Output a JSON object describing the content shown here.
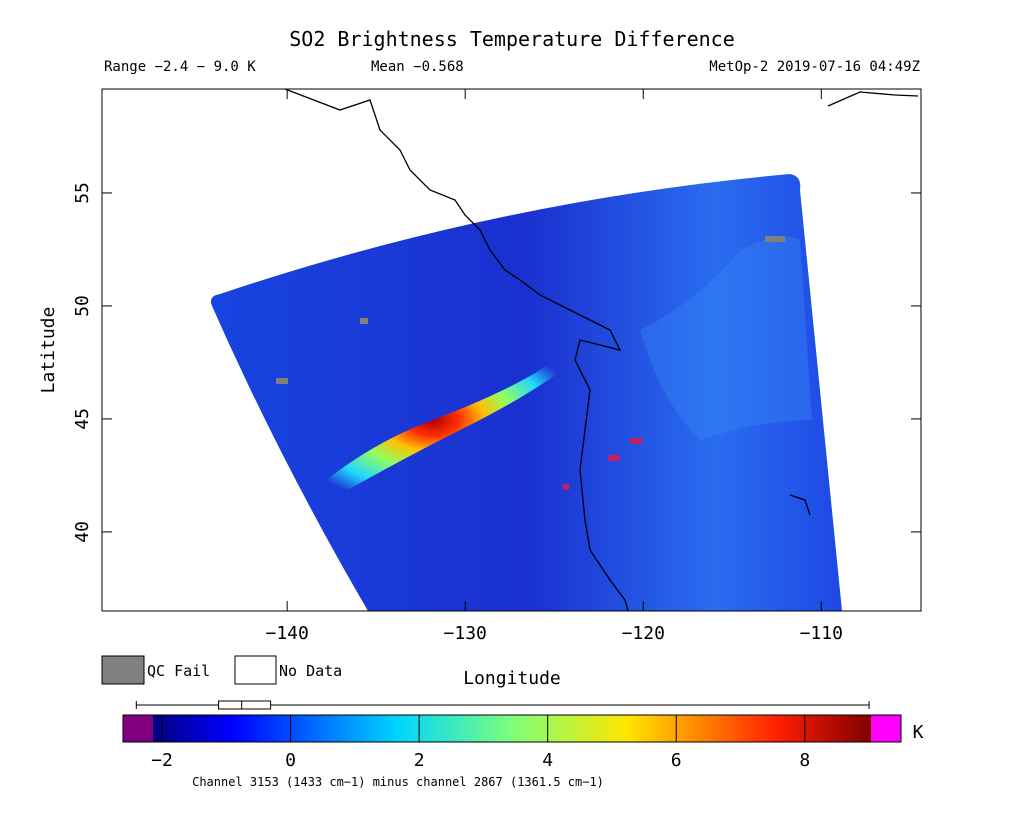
{
  "chart_data": {
    "type": "map",
    "title": "SO2 Brightness Temperature Difference",
    "range_text": "Range −2.4 − 9.0 K",
    "mean_text": "Mean −0.568",
    "source_text": "MetOp-2 2019-07-16 04:49Z",
    "xlabel": "Longitude",
    "ylabel": "Latitude",
    "xlim": [
      -150.4,
      -104.4
    ],
    "ylim": [
      36.5,
      59.6
    ],
    "xticks": [
      {
        "value": -140,
        "label": "−140"
      },
      {
        "value": -130,
        "label": "−130"
      },
      {
        "value": -120,
        "label": "−120"
      },
      {
        "value": -110,
        "label": "−110"
      }
    ],
    "yticks": [
      40,
      45,
      50,
      55
    ],
    "legend": [
      "QC Fail",
      "No Data"
    ],
    "colorbar": {
      "clim": [
        -2.14,
        9.03
      ],
      "ticks": [
        {
          "value": -2,
          "label": "−2"
        },
        0,
        2,
        4,
        6,
        8
      ],
      "unit": "K",
      "distribution": {
        "min": -2.4,
        "q1": -1.12,
        "median": -0.76,
        "q3": -0.31,
        "max": 9.0
      }
    },
    "footnote": "Channel 3153 (1433 cm−1) minus channel 2867 (1361.5 cm−1)"
  }
}
